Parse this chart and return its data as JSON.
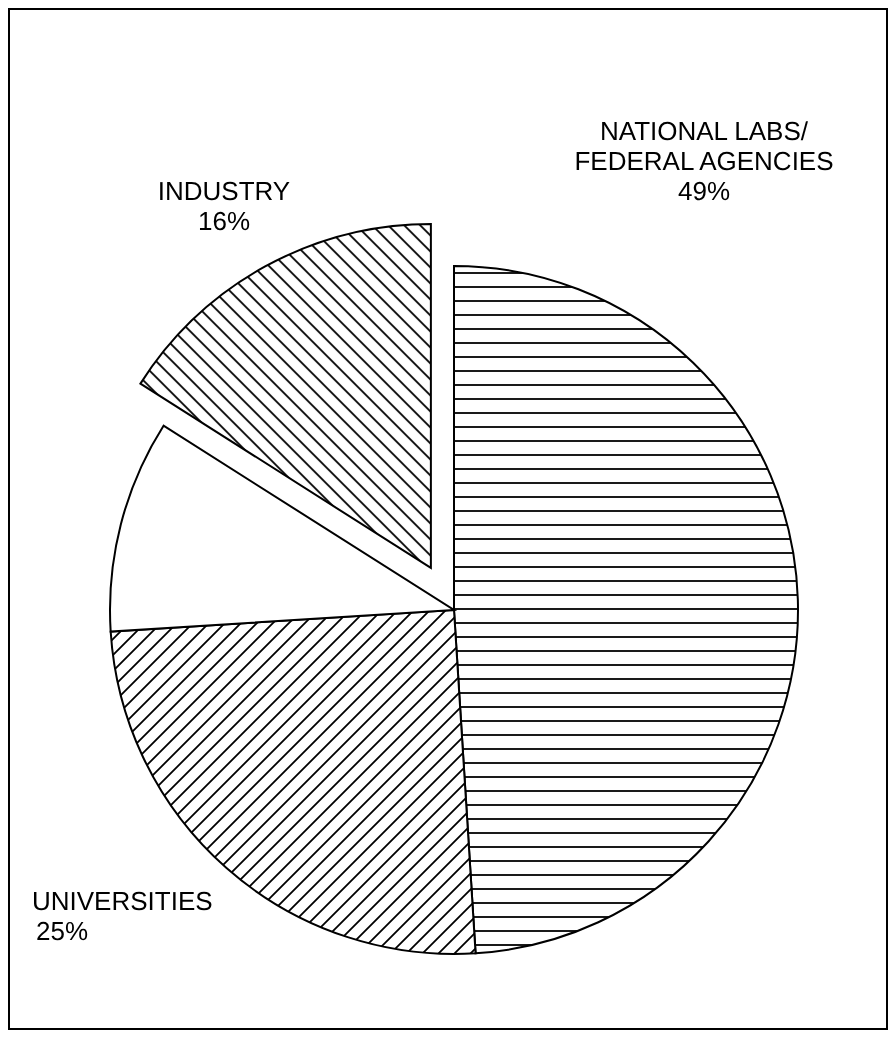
{
  "chart_data": {
    "type": "pie",
    "categories": [
      "NATIONAL LABS/\nFEDERAL AGENCIES",
      "UNIVERSITIES",
      null,
      "INDUSTRY"
    ],
    "values": [
      49,
      25,
      10,
      16
    ],
    "value_labels": [
      "49%",
      "25%",
      null,
      "16%"
    ],
    "colors": [
      "#000000",
      "#000000",
      "#000000",
      "#000000"
    ]
  }
}
